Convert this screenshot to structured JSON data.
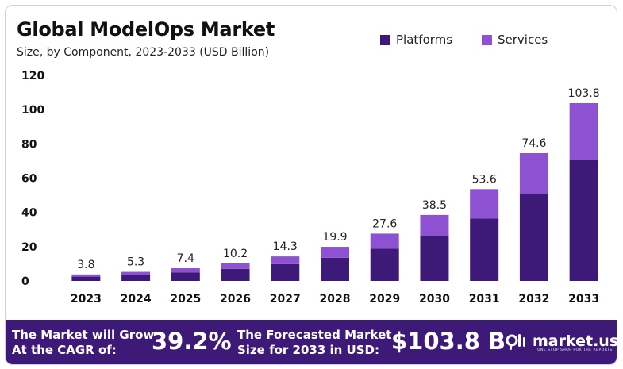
{
  "title": "Global ModelOps Market",
  "subtitle": "Size, by Component, 2023-2033 (USD Billion)",
  "colors": {
    "platforms": "#3e1a78",
    "services": "#8c52d1",
    "footer_bg": "#3e1a78"
  },
  "chart_data": {
    "type": "bar",
    "stacked": true,
    "title": "Global ModelOps Market",
    "subtitle": "Size, by Component, 2023-2033 (USD Billion)",
    "categories": [
      "2023",
      "2024",
      "2025",
      "2026",
      "2027",
      "2028",
      "2029",
      "2030",
      "2031",
      "2032",
      "2033"
    ],
    "series": [
      {
        "name": "Platforms",
        "values": [
          2.5,
          3.5,
          5.0,
          7.0,
          9.8,
          13.5,
          18.8,
          26.2,
          36.5,
          50.7,
          70.6
        ]
      },
      {
        "name": "Services",
        "values": [
          1.3,
          1.8,
          2.4,
          3.2,
          4.5,
          6.4,
          8.8,
          12.3,
          17.1,
          23.9,
          33.2
        ]
      }
    ],
    "totals": [
      3.8,
      5.3,
      7.4,
      10.2,
      14.3,
      19.9,
      27.6,
      38.5,
      53.6,
      74.6,
      103.8
    ],
    "total_labels": [
      "3.8",
      "5.3",
      "7.4",
      "10.2",
      "14.3",
      "19.9",
      "27.6",
      "38.5",
      "53.6",
      "74.6",
      "103.8"
    ],
    "yticks": [
      0,
      20,
      40,
      60,
      80,
      100,
      120
    ],
    "ylim": [
      0,
      120
    ],
    "xlabel": "",
    "ylabel": "",
    "legend_position": "top-right"
  },
  "footer": {
    "cagr_label": "The Market will Grow At the CAGR of:",
    "cagr_line1": "The Market will Grow",
    "cagr_line2": "At the CAGR of:",
    "cagr_value": "39.2%",
    "forecast_line1": "The Forecasted Market",
    "forecast_line2": "Size for 2033 in USD:",
    "forecast_value": "$103.8 B",
    "brand_name": "market.us",
    "brand_tagline": "ONE STOP SHOP FOR THE REPORTS"
  }
}
